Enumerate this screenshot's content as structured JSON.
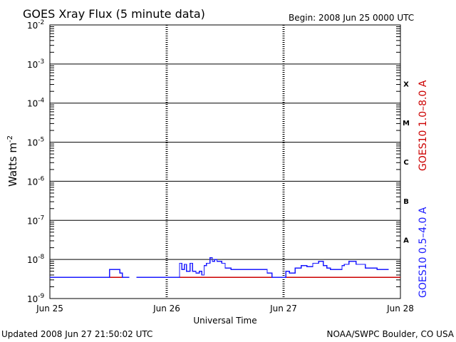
{
  "chart_data": {
    "type": "line",
    "title": "GOES Xray Flux (5 minute data)",
    "begin_label": "Begin:  2008 Jun 25 0000 UTC",
    "ylabel": "Watts m",
    "ylabel_sup": "-2",
    "xlabel": "Universal Time",
    "yscale": "log",
    "ylim": [
      1e-09,
      0.01
    ],
    "xlim": [
      0,
      3
    ],
    "x_tick_labels": [
      "Jun 25",
      "Jun 26",
      "Jun 27",
      "Jun 28"
    ],
    "y_tick_labels": [
      {
        "base": "10",
        "exp": "-2"
      },
      {
        "base": "10",
        "exp": "-3"
      },
      {
        "base": "10",
        "exp": "-4"
      },
      {
        "base": "10",
        "exp": "-5"
      },
      {
        "base": "10",
        "exp": "-6"
      },
      {
        "base": "10",
        "exp": "-7"
      },
      {
        "base": "10",
        "exp": "-8"
      },
      {
        "base": "10",
        "exp": "-9"
      }
    ],
    "flare_classes": [
      "X",
      "M",
      "C",
      "B",
      "A"
    ],
    "grid": true,
    "series": [
      {
        "name": "GOES10 1.0–8.0 A",
        "color": "#cc0000",
        "x": [
          0.0,
          0.68,
          0.68,
          0.74,
          0.74,
          1.3,
          1.3,
          3.0
        ],
        "y": [
          3.5e-09,
          3.5e-09,
          null,
          null,
          3.5e-09,
          3.5e-09,
          3.5e-09,
          3.5e-09
        ]
      },
      {
        "name": "GOES10 0.5–4.0 A",
        "color": "#1a1aff",
        "x": [
          0.0,
          0.49,
          0.51,
          0.55,
          0.6,
          0.62,
          0.65,
          0.68,
          null,
          0.74,
          1.0,
          1.08,
          1.11,
          1.13,
          1.15,
          1.17,
          1.2,
          1.22,
          1.25,
          1.28,
          1.3,
          1.32,
          1.34,
          1.37,
          1.39,
          1.41,
          1.43,
          1.47,
          1.5,
          1.55,
          1.62,
          1.7,
          1.8,
          1.86,
          1.9,
          1.94,
          1.98,
          2.0,
          2.02,
          2.05,
          2.1,
          2.15,
          2.2,
          2.25,
          2.3,
          2.34,
          2.37,
          2.4,
          2.48,
          2.5,
          2.52,
          2.56,
          2.62,
          2.7,
          2.8,
          2.9
        ],
        "y": [
          3.5e-09,
          3.5e-09,
          5.5e-09,
          5.5e-09,
          4.5e-09,
          3.5e-09,
          3.5e-09,
          3.5e-09,
          null,
          3.5e-09,
          3.5e-09,
          3.5e-09,
          8e-09,
          5.5e-09,
          7.5e-09,
          5e-09,
          8e-09,
          5e-09,
          4.5e-09,
          5e-09,
          4e-09,
          7e-09,
          8e-09,
          1.1e-08,
          9e-09,
          1e-08,
          9e-09,
          8e-09,
          6e-09,
          5.5e-09,
          5.5e-09,
          5.5e-09,
          5.5e-09,
          4.5e-09,
          3.5e-09,
          3.5e-09,
          3.5e-09,
          3.5e-09,
          5e-09,
          4.5e-09,
          6e-09,
          7e-09,
          6.5e-09,
          8e-09,
          9e-09,
          7e-09,
          6e-09,
          5.5e-09,
          5.5e-09,
          7e-09,
          7.5e-09,
          9e-09,
          7.5e-09,
          6e-09,
          5.5e-09,
          5.5e-09
        ]
      }
    ]
  },
  "footer": {
    "updated": "Updated 2008 Jun 27 21:50:02 UTC",
    "source": "NOAA/SWPC Boulder, CO USA"
  }
}
